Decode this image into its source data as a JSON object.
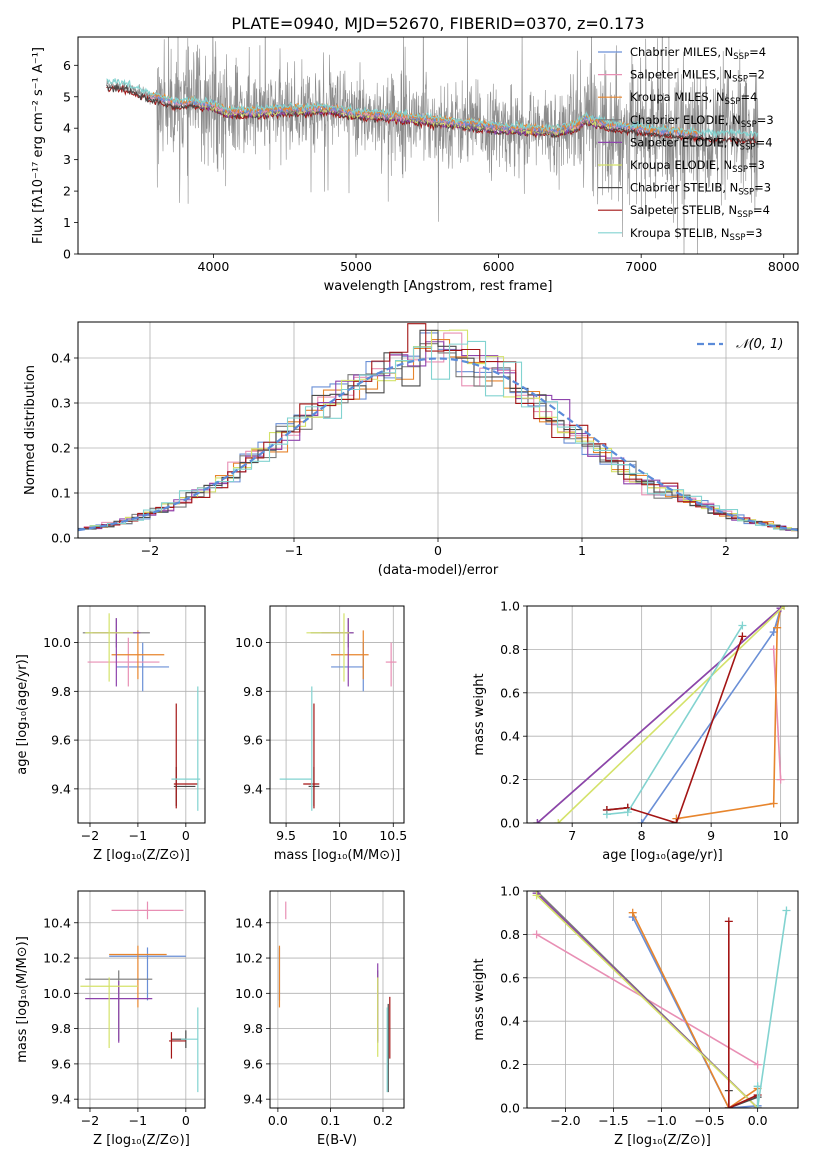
{
  "title": "PLATE=0940, MJD=52670, FIBERID=0370, z=0.173",
  "colors": {
    "chab_miles": "#6a8fd6",
    "salp_miles": "#e88fb4",
    "krou_miles": "#e7852d",
    "chab_elodie": "#7a7a7a",
    "salp_elodie": "#8e44ad",
    "krou_elodie": "#d4e26a",
    "chab_stelib": "#4a4a4a",
    "salp_stelib": "#a31515",
    "krou_stelib": "#82d3d0",
    "data": "#8c8c8c"
  },
  "chart_data": [
    {
      "id": "spectrum",
      "type": "line",
      "xlabel": "wavelength [Angstrom, rest frame]",
      "ylabel": "Flux [fλ10⁻¹⁷ erg cm⁻² s⁻¹ A⁻¹]",
      "xlim": [
        3050,
        8100
      ],
      "ylim": [
        0,
        6.9
      ],
      "xticks": [
        4000,
        5000,
        6000,
        7000,
        8000
      ],
      "yticks": [
        0,
        1,
        2,
        3,
        4,
        5,
        6
      ],
      "legend_position": "top-right",
      "legend": [
        {
          "key": "chab_miles",
          "label": "Chabrier MILES, N",
          "sub": "SSP",
          "eq": "=4"
        },
        {
          "key": "salp_miles",
          "label": "Salpeter MILES, N",
          "sub": "SSP",
          "eq": "=2"
        },
        {
          "key": "krou_miles",
          "label": "Kroupa MILES, N",
          "sub": "SSP",
          "eq": "=4"
        },
        {
          "key": "chab_elodie",
          "label": "Chabrier ELODIE, N",
          "sub": "SSP",
          "eq": "=3"
        },
        {
          "key": "salp_elodie",
          "label": "Salpeter ELODIE, N",
          "sub": "SSP",
          "eq": "=4"
        },
        {
          "key": "krou_elodie",
          "label": "Kroupa ELODIE, N",
          "sub": "SSP",
          "eq": "=3"
        },
        {
          "key": "chab_stelib",
          "label": "Chabrier STELIB, N",
          "sub": "SSP",
          "eq": "=3"
        },
        {
          "key": "salp_stelib",
          "label": "Salpeter STELIB, N",
          "sub": "SSP",
          "eq": "=4"
        },
        {
          "key": "krou_stelib",
          "label": "Kroupa STELIB, N",
          "sub": "SSP",
          "eq": "=3"
        }
      ],
      "model_continuum": [
        [
          3250,
          5.4
        ],
        [
          3400,
          5.3
        ],
        [
          3550,
          5.0
        ],
        [
          3650,
          4.9
        ],
        [
          3750,
          4.75
        ],
        [
          3850,
          4.8
        ],
        [
          4000,
          4.7
        ],
        [
          4100,
          4.5
        ],
        [
          4300,
          4.5
        ],
        [
          4500,
          4.55
        ],
        [
          4800,
          4.6
        ],
        [
          5000,
          4.45
        ],
        [
          5200,
          4.4
        ],
        [
          5500,
          4.25
        ],
        [
          5800,
          4.1
        ],
        [
          6000,
          4.0
        ],
        [
          6200,
          3.95
        ],
        [
          6400,
          3.9
        ],
        [
          6550,
          4.05
        ],
        [
          6600,
          4.3
        ],
        [
          6800,
          4.05
        ],
        [
          7000,
          3.95
        ],
        [
          7200,
          3.85
        ],
        [
          7500,
          3.75
        ],
        [
          7800,
          3.7
        ]
      ]
    },
    {
      "id": "residuals",
      "type": "step",
      "xlabel": "(data-model)/error",
      "ylabel": "Normed distribution",
      "xlim": [
        -2.5,
        2.5
      ],
      "ylim": [
        0,
        0.48
      ],
      "xticks": [
        -2,
        -1,
        0,
        1,
        2
      ],
      "yticks": [
        0.0,
        0.1,
        0.2,
        0.3,
        0.4
      ],
      "grid": true,
      "legend_position": "top-right",
      "normal_label": "𝒩(0, 1)",
      "normal_color": "#5b8bd9"
    },
    {
      "id": "age_vs_Z",
      "type": "errorbar",
      "xlabel": "Z [log₁₀(Z/Z⊙)]",
      "ylabel": "age  [log₁₀(age/yr)]",
      "xlim": [
        -2.25,
        0.4
      ],
      "ylim": [
        9.26,
        10.15
      ],
      "xticks": [
        -2,
        -1,
        0
      ],
      "yticks": [
        9.4,
        9.6,
        9.8,
        10.0
      ],
      "grid": true,
      "points": [
        {
          "key": "chab_miles",
          "x": -0.9,
          "y": 9.9,
          "xerr": [
            0.55,
            0.55
          ],
          "yerr": [
            0.1,
            0.1
          ]
        },
        {
          "key": "salp_miles",
          "x": -1.2,
          "y": 9.92,
          "xerr": [
            0.85,
            0.65
          ],
          "yerr": [
            0.1,
            0.1
          ]
        },
        {
          "key": "krou_miles",
          "x": -1.0,
          "y": 9.95,
          "xerr": [
            0.55,
            0.55
          ],
          "yerr": [
            0.1,
            0.1
          ]
        },
        {
          "key": "chab_elodie",
          "x": -1.45,
          "y": 10.04,
          "xerr": [
            0.7,
            0.7
          ],
          "yerr": [
            0.06,
            0.06
          ]
        },
        {
          "key": "salp_elodie",
          "x": -1.45,
          "y": 10.04,
          "xerr": [
            0.5,
            0.5
          ],
          "yerr": [
            0.22,
            0.06
          ]
        },
        {
          "key": "krou_elodie",
          "x": -1.6,
          "y": 10.04,
          "xerr": [
            0.5,
            0.5
          ],
          "yerr": [
            0.2,
            0.08
          ]
        },
        {
          "key": "chab_stelib",
          "x": -0.2,
          "y": 9.41,
          "xerr": [
            0.05,
            0.4
          ],
          "yerr": [
            0.08,
            0.08
          ]
        },
        {
          "key": "salp_stelib",
          "x": -0.2,
          "y": 9.42,
          "xerr": [
            0.05,
            0.45
          ],
          "yerr": [
            0.1,
            0.33
          ]
        },
        {
          "key": "krou_stelib",
          "x": 0.25,
          "y": 9.44,
          "xerr": [
            0.55,
            0.05
          ],
          "yerr": [
            0.13,
            0.38
          ]
        }
      ]
    },
    {
      "id": "age_vs_mass",
      "type": "errorbar",
      "xlabel": "mass [log₁₀(M/M⊙)]",
      "ylabel": "",
      "xlim": [
        9.35,
        10.6
      ],
      "ylim": [
        9.26,
        10.15
      ],
      "xticks": [
        9.5,
        10.0,
        10.5
      ],
      "yticks": [
        9.4,
        9.6,
        9.8,
        10.0
      ],
      "grid": true,
      "points": [
        {
          "key": "chab_miles",
          "x": 10.22,
          "y": 9.9,
          "xerr": [
            0.3,
            0.0
          ],
          "yerr": [
            0.1,
            0.1
          ]
        },
        {
          "key": "salp_miles",
          "x": 10.48,
          "y": 9.92,
          "xerr": [
            0.05,
            0.05
          ],
          "yerr": [
            0.1,
            0.08
          ]
        },
        {
          "key": "krou_miles",
          "x": 10.22,
          "y": 9.95,
          "xerr": [
            0.3,
            0.05
          ],
          "yerr": [
            0.1,
            0.1
          ]
        },
        {
          "key": "chab_elodie",
          "x": 10.08,
          "y": 10.04,
          "xerr": [
            0.35,
            0.05
          ],
          "yerr": [
            0.06,
            0.06
          ]
        },
        {
          "key": "salp_elodie",
          "x": 10.08,
          "y": 10.04,
          "xerr": [
            0.25,
            0.05
          ],
          "yerr": [
            0.22,
            0.06
          ]
        },
        {
          "key": "krou_elodie",
          "x": 10.04,
          "y": 10.04,
          "xerr": [
            0.35,
            0.05
          ],
          "yerr": [
            0.2,
            0.08
          ]
        },
        {
          "key": "chab_stelib",
          "x": 9.76,
          "y": 9.41,
          "xerr": [
            0.05,
            0.05
          ],
          "yerr": [
            0.08,
            0.08
          ]
        },
        {
          "key": "salp_stelib",
          "x": 9.76,
          "y": 9.42,
          "xerr": [
            0.1,
            0.05
          ],
          "yerr": [
            0.1,
            0.33
          ]
        },
        {
          "key": "krou_stelib",
          "x": 9.74,
          "y": 9.44,
          "xerr": [
            0.3,
            0.0
          ],
          "yerr": [
            0.13,
            0.38
          ]
        }
      ]
    },
    {
      "id": "mass_weight_vs_age",
      "type": "line",
      "xlabel": "age  [log₁₀(age/yr)]",
      "ylabel": "mass weight",
      "xlim": [
        6.35,
        10.25
      ],
      "ylim": [
        0,
        1.0
      ],
      "xticks": [
        7,
        8,
        9,
        10
      ],
      "yticks": [
        0.0,
        0.2,
        0.4,
        0.6,
        0.8,
        1.0
      ],
      "grid": true,
      "series": [
        {
          "key": "chab_miles",
          "points": [
            [
              8.0,
              0.0
            ],
            [
              9.9,
              0.88
            ],
            [
              10.0,
              0.99
            ]
          ]
        },
        {
          "key": "salp_miles",
          "points": [
            [
              9.9,
              0.8
            ],
            [
              10.0,
              0.2
            ]
          ]
        },
        {
          "key": "krou_miles",
          "points": [
            [
              8.5,
              0.02
            ],
            [
              9.9,
              0.09
            ],
            [
              9.95,
              0.9
            ],
            [
              10.0,
              0.99
            ]
          ]
        },
        {
          "key": "chab_elodie",
          "points": [
            [
              6.5,
              0.0
            ],
            [
              10.0,
              0.99
            ]
          ]
        },
        {
          "key": "salp_elodie",
          "points": [
            [
              6.5,
              0.0
            ],
            [
              10.0,
              0.99
            ]
          ]
        },
        {
          "key": "krou_elodie",
          "points": [
            [
              6.8,
              0.0
            ],
            [
              10.05,
              1.0
            ]
          ]
        },
        {
          "key": "chab_stelib",
          "points": [
            [
              7.5,
              0.06
            ],
            [
              7.8,
              0.07
            ]
          ]
        },
        {
          "key": "salp_stelib",
          "points": [
            [
              7.5,
              0.06
            ],
            [
              7.8,
              0.07
            ],
            [
              8.5,
              0.0
            ],
            [
              9.45,
              0.86
            ]
          ]
        },
        {
          "key": "krou_stelib",
          "points": [
            [
              7.5,
              0.04
            ],
            [
              7.8,
              0.05
            ],
            [
              9.45,
              0.91
            ]
          ]
        }
      ]
    },
    {
      "id": "mass_vs_Z",
      "type": "errorbar",
      "xlabel": "Z [log₁₀(Z/Z⊙)]",
      "ylabel": "mass [log₁₀(M/M⊙)]",
      "xlim": [
        -2.25,
        0.4
      ],
      "ylim": [
        9.35,
        10.58
      ],
      "xticks": [
        -2,
        -1,
        0
      ],
      "yticks": [
        9.4,
        9.6,
        9.8,
        10.0,
        10.2,
        10.4
      ],
      "grid": true,
      "points": [
        {
          "key": "chab_miles",
          "x": -0.8,
          "y": 10.21,
          "xerr": [
            0.8,
            0.8
          ],
          "yerr": [
            0.25,
            0.05
          ]
        },
        {
          "key": "salp_miles",
          "x": -0.8,
          "y": 10.47,
          "xerr": [
            0.75,
            0.75
          ],
          "yerr": [
            0.05,
            0.05
          ]
        },
        {
          "key": "krou_miles",
          "x": -1.0,
          "y": 10.22,
          "xerr": [
            0.6,
            0.6
          ],
          "yerr": [
            0.3,
            0.05
          ]
        },
        {
          "key": "chab_elodie",
          "x": -1.4,
          "y": 10.08,
          "xerr": [
            0.7,
            0.7
          ],
          "yerr": [
            0.35,
            0.05
          ]
        },
        {
          "key": "salp_elodie",
          "x": -1.4,
          "y": 9.97,
          "xerr": [
            0.7,
            0.7
          ],
          "yerr": [
            0.25,
            0.1
          ]
        },
        {
          "key": "krou_elodie",
          "x": -1.6,
          "y": 10.04,
          "xerr": [
            0.6,
            0.6
          ],
          "yerr": [
            0.35,
            0.05
          ]
        },
        {
          "key": "chab_stelib",
          "x": -0.0,
          "y": 9.74,
          "xerr": [
            0.3,
            0.0
          ],
          "yerr": [
            0.05,
            0.05
          ]
        },
        {
          "key": "salp_stelib",
          "x": -0.3,
          "y": 9.73,
          "xerr": [
            0.05,
            0.3
          ],
          "yerr": [
            0.1,
            0.05
          ]
        },
        {
          "key": "krou_stelib",
          "x": 0.25,
          "y": 9.74,
          "xerr": [
            0.35,
            0.0
          ],
          "yerr": [
            0.3,
            0.18
          ]
        }
      ]
    },
    {
      "id": "mass_vs_EBV",
      "type": "errorbar",
      "xlabel": "E(B-V)",
      "ylabel": "",
      "xlim": [
        -0.015,
        0.24
      ],
      "ylim": [
        9.35,
        10.58
      ],
      "xticks": [
        0.0,
        0.1,
        0.2
      ],
      "yticks": [
        9.4,
        9.6,
        9.8,
        10.0,
        10.2,
        10.4
      ],
      "grid": true,
      "points": [
        {
          "key": "chab_miles",
          "x": 0.003,
          "y": 10.21,
          "xerr": [
            0,
            0
          ],
          "yerr": [
            0.25,
            0.05
          ]
        },
        {
          "key": "salp_miles",
          "x": 0.015,
          "y": 10.47,
          "xerr": [
            0,
            0
          ],
          "yerr": [
            0.05,
            0.05
          ]
        },
        {
          "key": "krou_miles",
          "x": 0.003,
          "y": 10.22,
          "xerr": [
            0,
            0
          ],
          "yerr": [
            0.3,
            0.05
          ]
        },
        {
          "key": "chab_elodie",
          "x": 0.19,
          "y": 10.08,
          "xerr": [
            0,
            0
          ],
          "yerr": [
            0.35,
            0.05
          ]
        },
        {
          "key": "salp_elodie",
          "x": 0.19,
          "y": 9.97,
          "xerr": [
            0,
            0
          ],
          "yerr": [
            0.25,
            0.2
          ]
        },
        {
          "key": "krou_elodie",
          "x": 0.19,
          "y": 10.04,
          "xerr": [
            0,
            0
          ],
          "yerr": [
            0.4,
            0.05
          ]
        },
        {
          "key": "chab_stelib",
          "x": 0.21,
          "y": 9.74,
          "xerr": [
            0,
            0
          ],
          "yerr": [
            0.3,
            0.2
          ]
        },
        {
          "key": "salp_stelib",
          "x": 0.213,
          "y": 9.73,
          "xerr": [
            0,
            0
          ],
          "yerr": [
            0.1,
            0.25
          ]
        },
        {
          "key": "krou_stelib",
          "x": 0.208,
          "y": 9.74,
          "xerr": [
            0,
            0
          ],
          "yerr": [
            0.3,
            0.18
          ]
        }
      ]
    },
    {
      "id": "mass_weight_vs_Z",
      "type": "line",
      "xlabel": "Z [log₁₀(Z/Z⊙)]",
      "ylabel": "mass weight",
      "xlim": [
        -2.4,
        0.42
      ],
      "ylim": [
        0,
        1.0
      ],
      "xticks": [
        -2.0,
        -1.5,
        -1.0,
        -0.5,
        0.0
      ],
      "yticks": [
        0.0,
        0.2,
        0.4,
        0.6,
        0.8,
        1.0
      ],
      "grid": true,
      "series": [
        {
          "key": "chab_miles",
          "points": [
            [
              -1.3,
              0.88
            ],
            [
              -0.3,
              0.0
            ],
            [
              0.0,
              0.01
            ]
          ]
        },
        {
          "key": "salp_miles",
          "points": [
            [
              -2.3,
              0.8
            ],
            [
              0.0,
              0.2
            ]
          ]
        },
        {
          "key": "krou_miles",
          "points": [
            [
              -1.3,
              0.9
            ],
            [
              -0.3,
              0.0
            ],
            [
              0.0,
              0.09
            ]
          ]
        },
        {
          "key": "chab_elodie",
          "points": [
            [
              -2.3,
              1.0
            ],
            [
              0.0,
              0.0
            ]
          ]
        },
        {
          "key": "salp_elodie",
          "points": [
            [
              -2.3,
              0.99
            ],
            [
              0.0,
              0.0
            ]
          ]
        },
        {
          "key": "krou_elodie",
          "points": [
            [
              -2.3,
              0.98
            ],
            [
              0.0,
              0.0
            ]
          ]
        },
        {
          "key": "chab_stelib",
          "points": [
            [
              -0.3,
              0.08
            ],
            [
              -0.3,
              0.0
            ],
            [
              0.0,
              0.05
            ]
          ]
        },
        {
          "key": "salp_stelib",
          "points": [
            [
              -0.3,
              0.86
            ],
            [
              -0.3,
              0.0
            ],
            [
              0.0,
              0.06
            ]
          ]
        },
        {
          "key": "krou_stelib",
          "points": [
            [
              0.3,
              0.91
            ],
            [
              0.0,
              0.0
            ],
            [
              0.0,
              0.1
            ]
          ]
        }
      ]
    }
  ]
}
